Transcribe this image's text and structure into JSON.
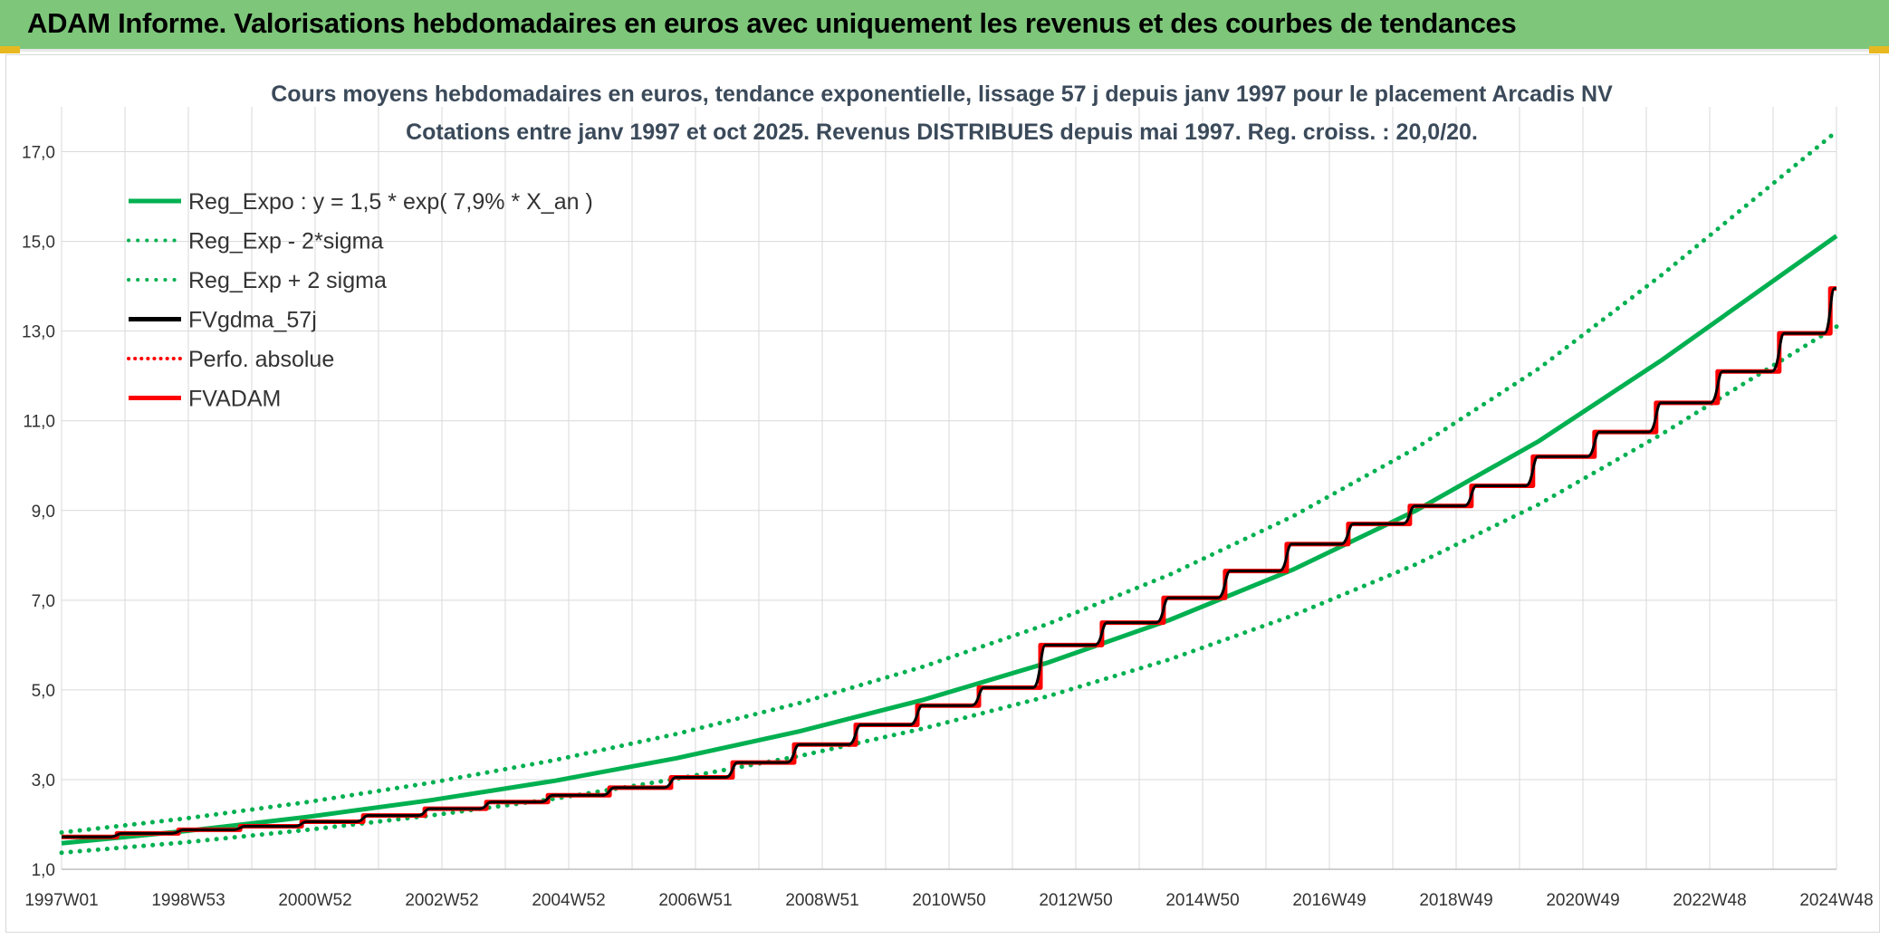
{
  "header": {
    "title": "ADAM Informe. Valorisations hebdomadaires en euros avec uniquement les revenus et des courbes de tendances"
  },
  "colors": {
    "banner": "#7dc67a",
    "reg": "#00b050",
    "fv": "#000000",
    "adam": "#ff0000",
    "grid": "#d9d9d9"
  },
  "chart_data": {
    "type": "line",
    "title": "Cours moyens hebdomadaires en euros, tendance exponentielle, lissage 57 j depuis janv 1997 pour le placement Arcadis NV",
    "subtitle": "Cotations entre janv 1997 et oct 2025. Revenus DISTRIBUES depuis mai 1997. Reg. croiss. : 20,0/20.",
    "x_tick_labels": [
      "1997W01",
      "1998W53",
      "2000W52",
      "2002W52",
      "2004W52",
      "2006W51",
      "2008W51",
      "2010W50",
      "2012W50",
      "2014W50",
      "2016W49",
      "2018W49",
      "2020W49",
      "2022W48",
      "2024W48"
    ],
    "x_range": [
      "1997W01",
      "2025W44"
    ],
    "ylim": [
      1.0,
      18.0
    ],
    "y_ticks": [
      "1,0",
      "3,0",
      "5,0",
      "7,0",
      "9,0",
      "11,0",
      "13,0",
      "15,0",
      "17,0"
    ],
    "legend": [
      {
        "name": "Reg_Expo : y = 1,5 * exp( 7,9% *  X_an )",
        "style": "solid",
        "color": "#00b050"
      },
      {
        "name": "Reg_Exp - 2*sigma",
        "style": "dotted",
        "color": "#00b050"
      },
      {
        "name": "Reg_Exp + 2 sigma",
        "style": "dotted",
        "color": "#00b050"
      },
      {
        "name": "FVgdma_57j",
        "style": "solid",
        "color": "#000000"
      },
      {
        "name": "Perfo. absolue",
        "style": "dotted",
        "color": "#ff0000"
      },
      {
        "name": "FVADAM",
        "style": "solid",
        "color": "#ff0000"
      }
    ],
    "series": [
      {
        "name": "Reg_Expo : y = 1,5 * exp( 7,9% *  X_an )",
        "x": [
          1997.0,
          1999.0,
          2001.0,
          2003.0,
          2005.0,
          2007.0,
          2009.0,
          2011.0,
          2013.0,
          2015.0,
          2017.0,
          2019.0,
          2021.0,
          2023.0,
          2025.83
        ],
        "values": [
          1.58,
          1.85,
          2.17,
          2.54,
          2.97,
          3.48,
          4.08,
          4.78,
          5.6,
          6.56,
          7.68,
          9.0,
          10.55,
          12.36,
          15.12
        ]
      },
      {
        "name": "Reg_Exp - 2*sigma",
        "x": [
          1997.0,
          1999.0,
          2001.0,
          2003.0,
          2005.0,
          2007.0,
          2009.0,
          2011.0,
          2013.0,
          2015.0,
          2017.0,
          2019.0,
          2021.0,
          2023.0,
          2025.83
        ],
        "values": [
          1.37,
          1.6,
          1.88,
          2.2,
          2.57,
          3.02,
          3.53,
          4.14,
          4.85,
          5.68,
          6.66,
          7.8,
          9.14,
          10.71,
          13.1
        ]
      },
      {
        "name": "Reg_Exp + 2 sigma",
        "x": [
          1997.0,
          1999.0,
          2001.0,
          2003.0,
          2005.0,
          2007.0,
          2009.0,
          2011.0,
          2013.0,
          2015.0,
          2017.0,
          2019.0,
          2021.0,
          2023.0,
          2025.83
        ],
        "values": [
          1.82,
          2.13,
          2.5,
          2.93,
          3.43,
          4.02,
          4.71,
          5.52,
          6.46,
          7.57,
          8.87,
          10.39,
          12.17,
          14.26,
          17.45
        ]
      },
      {
        "name": "FVADAM",
        "x": [
          1997.0,
          1998.0,
          1999.0,
          2000.0,
          2001.0,
          2002.0,
          2003.0,
          2004.0,
          2005.0,
          2006.0,
          2007.0,
          2008.0,
          2009.0,
          2010.0,
          2011.0,
          2012.0,
          2013.0,
          2014.0,
          2015.0,
          2016.0,
          2017.0,
          2018.0,
          2019.0,
          2020.0,
          2021.0,
          2022.0,
          2023.0,
          2024.0,
          2025.0
        ],
        "values": [
          1.72,
          1.8,
          1.88,
          1.96,
          2.06,
          2.2,
          2.35,
          2.5,
          2.65,
          2.82,
          3.05,
          3.38,
          3.78,
          4.22,
          4.65,
          5.05,
          6.0,
          6.5,
          7.05,
          7.65,
          8.25,
          8.7,
          9.1,
          9.55,
          10.2,
          10.75,
          11.4,
          12.1,
          12.95
        ],
        "end": {
          "x": 2025.83,
          "value": 13.95
        }
      }
    ]
  }
}
